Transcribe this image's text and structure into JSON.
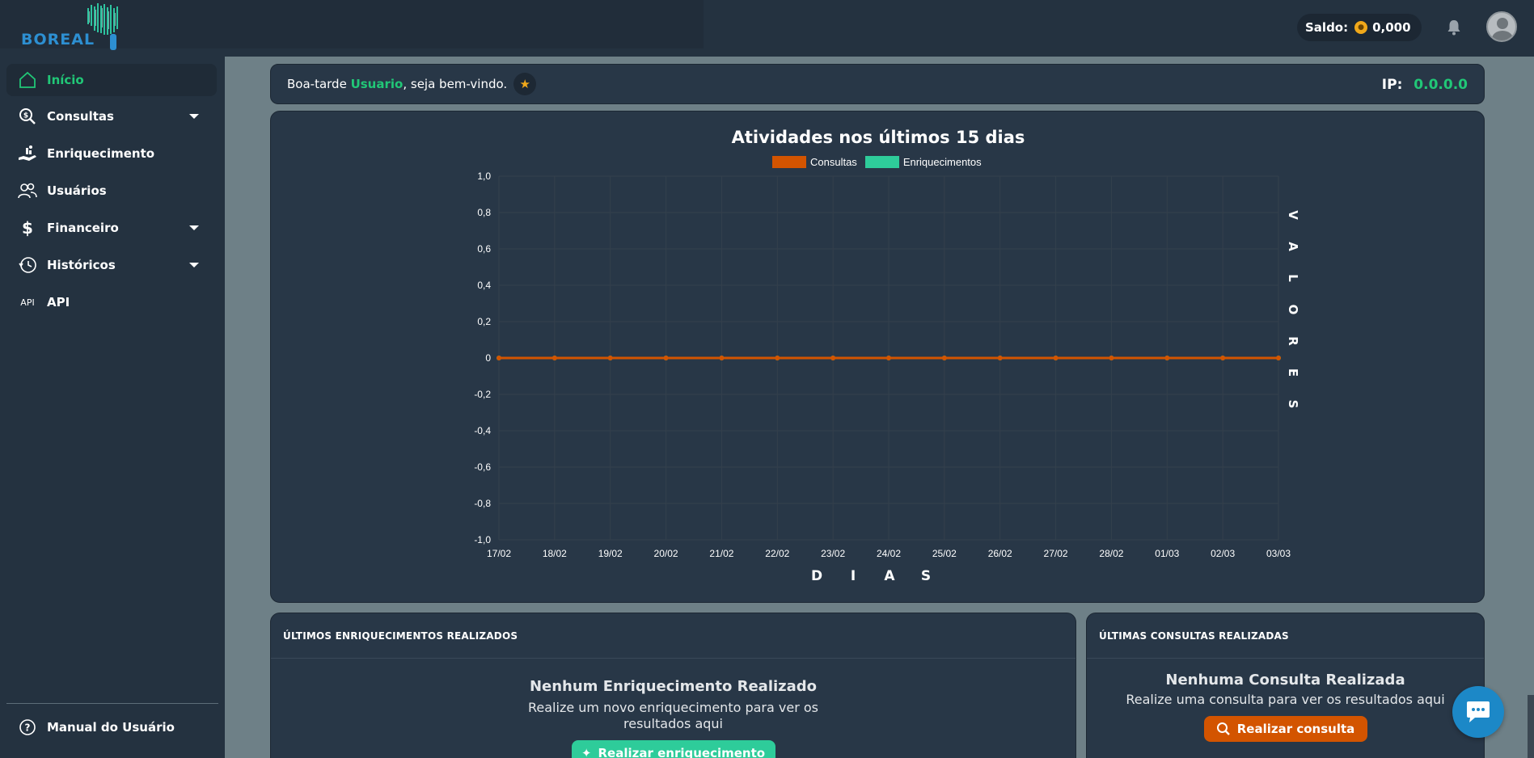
{
  "brand": {
    "logo_text": "BOREAL"
  },
  "header": {
    "balance_label": "Saldo:",
    "balance_value": "0,000",
    "bell_icon": "bell-icon",
    "avatar_icon": "user-avatar"
  },
  "sidebar": {
    "items": [
      {
        "label": "Início",
        "icon": "home-icon",
        "active": true
      },
      {
        "label": "Consultas",
        "icon": "search-dollar-icon",
        "dropdown": true
      },
      {
        "label": "Enriquecimento",
        "icon": "hand-coins-icon"
      },
      {
        "label": "Usuários",
        "icon": "users-icon"
      },
      {
        "label": "Financeiro",
        "icon": "dollar-icon",
        "dropdown": true
      },
      {
        "label": "Históricos",
        "icon": "history-icon",
        "dropdown": true
      },
      {
        "label": "API",
        "icon": "api-icon",
        "icon_text": "API"
      }
    ],
    "footer_item": {
      "label": "Manual do Usuário",
      "icon": "help-icon"
    }
  },
  "greeting": {
    "prefix": "Boa-tarde ",
    "user": "Usuario",
    "suffix": ", seja bem-vindo.",
    "ip_label": "IP:",
    "ip_value": "0.0.0.0"
  },
  "chart_data": {
    "type": "line",
    "title": "Atividades nos últimos 15 dias",
    "xlabel": "D I A S",
    "ylabel": "V A L O R E S",
    "categories": [
      "17/02",
      "18/02",
      "19/02",
      "20/02",
      "21/02",
      "22/02",
      "23/02",
      "24/02",
      "25/02",
      "26/02",
      "27/02",
      "28/02",
      "01/03",
      "02/03",
      "03/03"
    ],
    "ylim": [
      -1.0,
      1.0
    ],
    "yticks": [
      "1,0",
      "0,8",
      "0,6",
      "0,4",
      "0,2",
      "0",
      "-0,2",
      "-0,4",
      "-0,6",
      "-0,8",
      "-1,0"
    ],
    "series": [
      {
        "name": "Consultas",
        "color": "#d35400",
        "values": [
          0,
          0,
          0,
          0,
          0,
          0,
          0,
          0,
          0,
          0,
          0,
          0,
          0,
          0,
          0
        ]
      },
      {
        "name": "Enriquecimentos",
        "color": "#2ecc9a",
        "values": [
          0,
          0,
          0,
          0,
          0,
          0,
          0,
          0,
          0,
          0,
          0,
          0,
          0,
          0,
          0
        ]
      }
    ],
    "grid": true,
    "legend": "top"
  },
  "cards": {
    "enrich": {
      "title": "ÚLTIMOS ENRIQUECIMENTOS REALIZADOS",
      "empty_title": "Nenhum Enriquecimento Realizado",
      "empty_sub_1": "Realize um novo enriquecimento para ver os",
      "empty_sub_2": "resultados aqui",
      "button": "Realizar enriquecimento",
      "button_color": "#2ecc9a"
    },
    "consult": {
      "title": "ÚLTIMAS CONSULTAS REALIZADAS",
      "empty_title": "Nenhuma Consulta Realizada",
      "empty_sub": "Realize uma consulta para ver os resultados aqui",
      "button": "Realizar consulta",
      "button_color": "#d35400"
    }
  },
  "chat": {
    "icon": "chat-bubble-icon"
  }
}
